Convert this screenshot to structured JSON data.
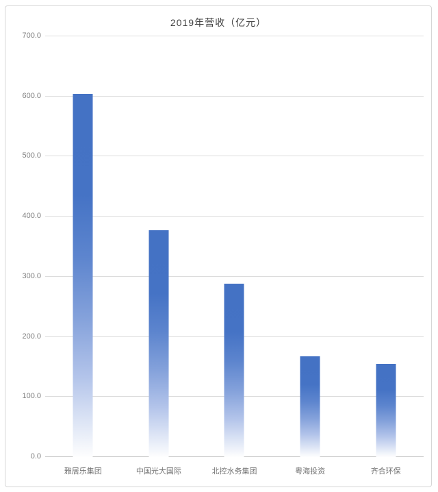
{
  "chart_data": {
    "type": "bar",
    "title": "2019年营收（亿元）",
    "categories": [
      "雅居乐集团",
      "中国光大国际",
      "北控水务集团",
      "粤海投资",
      "齐合环保"
    ],
    "values": [
      604,
      377,
      289,
      168,
      155
    ],
    "xlabel": "",
    "ylabel": "",
    "ylim": [
      0,
      700
    ],
    "yticks": [
      0,
      100,
      200,
      300,
      400,
      500,
      600,
      700
    ],
    "ytick_labels": [
      "0.0",
      "100.0",
      "200.0",
      "300.0",
      "400.0",
      "500.0",
      "600.0",
      "700.0"
    ],
    "grid": "horizontal",
    "legend_position": "none",
    "bar_gradient_top_color": "#4472C4",
    "bar_gradient_bottom_color": "#FFFFFF",
    "gridline_color": "#DCDCDC",
    "series_name": "2019年营收"
  }
}
